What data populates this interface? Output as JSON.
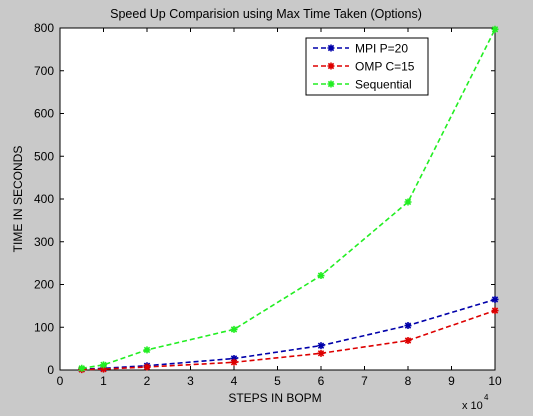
{
  "chart_data": {
    "type": "line",
    "title": "Speed Up Comparision using Max Time Taken (Options)",
    "xlabel": "STEPS IN BOPM",
    "ylabel": "TIME IN SECONDS",
    "x_multiplier_label": "x 10",
    "x_multiplier_exponent": "4",
    "xlim": [
      0,
      10
    ],
    "ylim": [
      0,
      800
    ],
    "xticks": [
      "0",
      "1",
      "2",
      "3",
      "4",
      "5",
      "6",
      "7",
      "8",
      "9",
      "10"
    ],
    "yticks": [
      "0",
      "100",
      "200",
      "300",
      "400",
      "500",
      "600",
      "700",
      "800"
    ],
    "grid": false,
    "legend_position": "top-right",
    "x": [
      0.5,
      1,
      2,
      4,
      6,
      8,
      10
    ],
    "series": [
      {
        "name": "MPI P=20",
        "color": "#0000aa",
        "values": [
          2,
          4,
          10,
          27,
          57,
          104,
          165
        ]
      },
      {
        "name": "OMP C=15",
        "color": "#dd0000",
        "values": [
          1,
          2,
          7,
          18,
          39,
          69,
          139
        ]
      },
      {
        "name": "Sequential",
        "color": "#22ee22",
        "values": [
          4,
          12,
          47,
          95,
          221,
          393,
          797
        ]
      }
    ]
  }
}
